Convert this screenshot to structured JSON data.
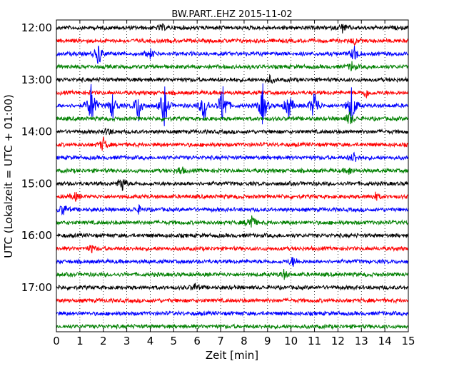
{
  "chart_data": {
    "type": "line",
    "title": "BW.PART..EHZ 2015-11-02",
    "xlabel": "Zeit  [min]",
    "ylabel": "UTC (Lokalzeit = UTC + 01:00)",
    "xlim": [
      0,
      15
    ],
    "x_ticks": [
      "0",
      "1",
      "2",
      "3",
      "4",
      "5",
      "6",
      "7",
      "8",
      "9",
      "10",
      "11",
      "12",
      "13",
      "14",
      "15"
    ],
    "y_ticks": [
      "12:00",
      "13:00",
      "14:00",
      "15:00",
      "16:00",
      "17:00"
    ],
    "grid": true,
    "trace_colors": [
      "#000000",
      "#ff0000",
      "#0000ff",
      "#008000"
    ],
    "traces": [
      {
        "start": "12:00",
        "color": "#000000",
        "events": [
          {
            "x": 12.2,
            "amp": 0.6
          },
          {
            "x": 4.5,
            "amp": 0.4
          }
        ]
      },
      {
        "start": "12:15",
        "color": "#ff0000",
        "events": [
          {
            "x": 12.7,
            "amp": 0.5
          }
        ]
      },
      {
        "start": "12:30",
        "color": "#0000ff",
        "events": [
          {
            "x": 1.8,
            "amp": 1.6
          },
          {
            "x": 4.0,
            "amp": 0.6
          },
          {
            "x": 12.7,
            "amp": 1.2
          }
        ]
      },
      {
        "start": "12:45",
        "color": "#008000",
        "events": [
          {
            "x": 12.6,
            "amp": 0.7
          }
        ]
      },
      {
        "start": "13:00",
        "color": "#000000",
        "events": [
          {
            "x": 9.1,
            "amp": 0.5
          }
        ]
      },
      {
        "start": "13:15",
        "color": "#ff0000",
        "events": [
          {
            "x": 13.2,
            "amp": 0.6
          }
        ]
      },
      {
        "start": "13:30",
        "color": "#0000ff",
        "events": [
          {
            "x": 1.5,
            "amp": 3.5
          },
          {
            "x": 2.4,
            "amp": 2.0
          },
          {
            "x": 3.5,
            "amp": 2.5
          },
          {
            "x": 4.6,
            "amp": 3.0
          },
          {
            "x": 6.3,
            "amp": 2.5
          },
          {
            "x": 7.1,
            "amp": 3.5
          },
          {
            "x": 8.8,
            "amp": 3.0
          },
          {
            "x": 9.9,
            "amp": 2.0
          },
          {
            "x": 11.0,
            "amp": 2.5
          },
          {
            "x": 12.6,
            "amp": 3.0
          }
        ]
      },
      {
        "start": "13:45",
        "color": "#008000",
        "events": [
          {
            "x": 12.5,
            "amp": 1.0
          }
        ]
      },
      {
        "start": "14:00",
        "color": "#000000",
        "events": [
          {
            "x": 2.2,
            "amp": 0.5
          }
        ]
      },
      {
        "start": "14:15",
        "color": "#ff0000",
        "events": [
          {
            "x": 2.0,
            "amp": 1.0
          }
        ]
      },
      {
        "start": "14:30",
        "color": "#0000ff",
        "events": [
          {
            "x": 12.7,
            "amp": 0.8
          }
        ]
      },
      {
        "start": "14:45",
        "color": "#008000",
        "events": [
          {
            "x": 5.3,
            "amp": 0.6
          },
          {
            "x": 12.5,
            "amp": 0.5
          }
        ]
      },
      {
        "start": "15:00",
        "color": "#000000",
        "events": [
          {
            "x": 2.8,
            "amp": 1.2
          }
        ]
      },
      {
        "start": "15:15",
        "color": "#ff0000",
        "events": [
          {
            "x": 0.8,
            "amp": 0.6
          },
          {
            "x": 13.6,
            "amp": 0.5
          }
        ]
      },
      {
        "start": "15:30",
        "color": "#0000ff",
        "events": [
          {
            "x": 0.3,
            "amp": 0.9
          },
          {
            "x": 3.5,
            "amp": 0.5
          }
        ]
      },
      {
        "start": "15:45",
        "color": "#008000",
        "events": [
          {
            "x": 8.3,
            "amp": 1.4
          }
        ]
      },
      {
        "start": "16:00",
        "color": "#000000",
        "events": []
      },
      {
        "start": "16:15",
        "color": "#ff0000",
        "events": [
          {
            "x": 1.5,
            "amp": 0.5
          }
        ]
      },
      {
        "start": "16:30",
        "color": "#0000ff",
        "events": [
          {
            "x": 10.1,
            "amp": 0.7
          }
        ]
      },
      {
        "start": "16:45",
        "color": "#008000",
        "events": [
          {
            "x": 9.7,
            "amp": 0.6
          }
        ]
      },
      {
        "start": "17:00",
        "color": "#000000",
        "events": [
          {
            "x": 5.9,
            "amp": 0.5
          }
        ]
      },
      {
        "start": "17:15",
        "color": "#ff0000",
        "events": []
      },
      {
        "start": "17:30",
        "color": "#0000ff",
        "events": []
      },
      {
        "start": "17:45",
        "color": "#008000",
        "events": []
      }
    ]
  }
}
